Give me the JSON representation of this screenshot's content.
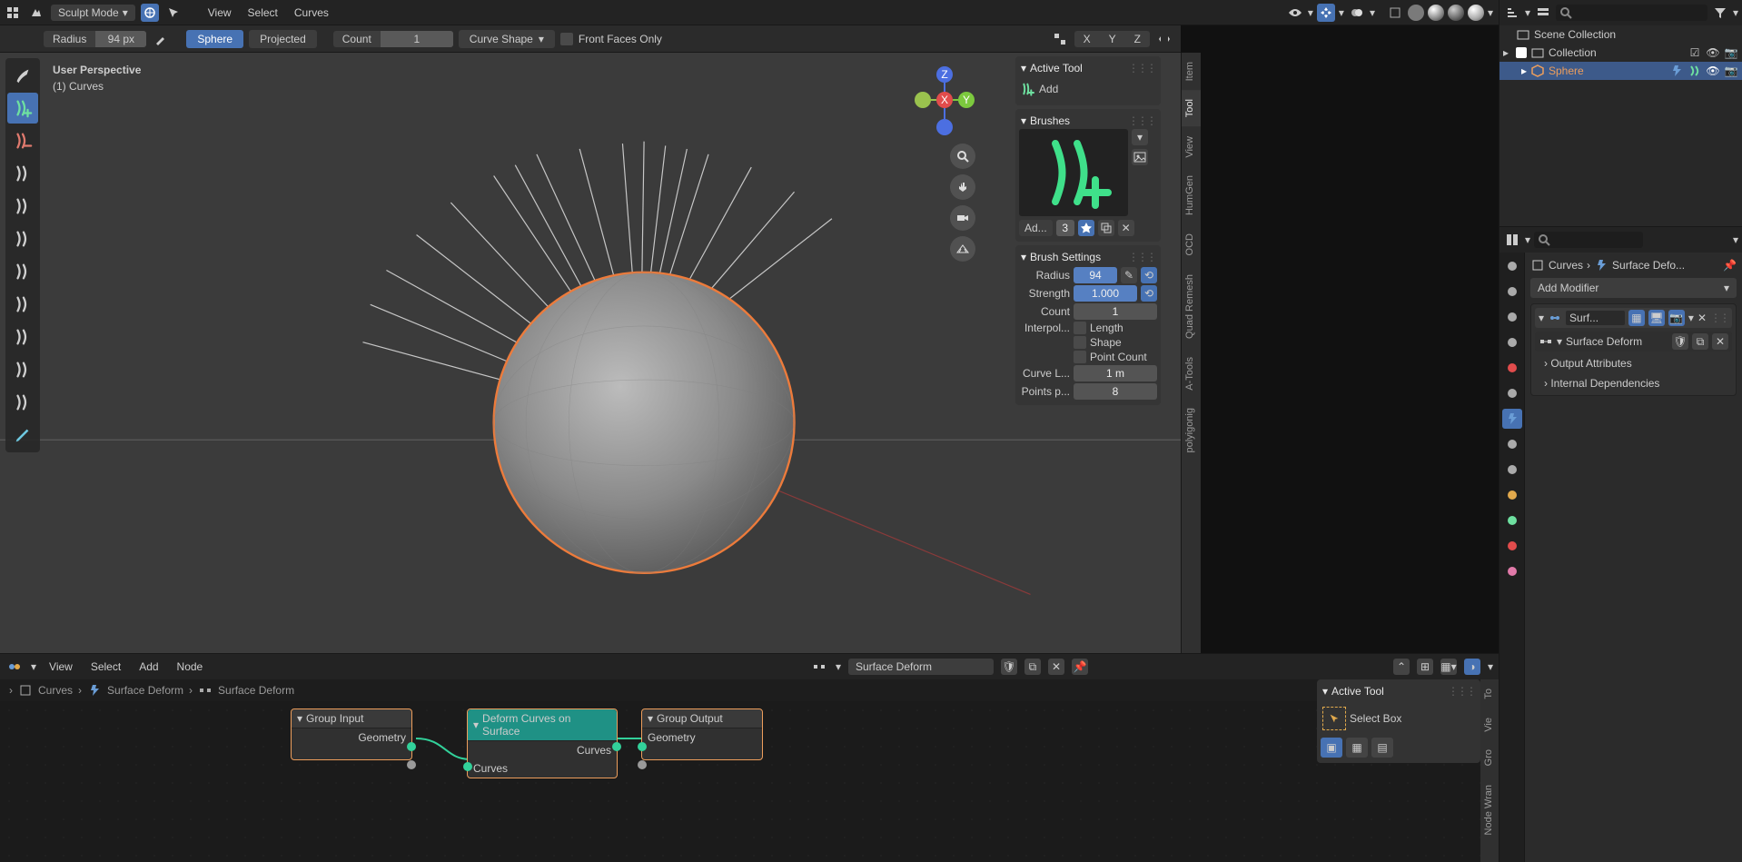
{
  "topbar": {
    "mode": "Sculpt Mode",
    "menus": [
      "View",
      "Select",
      "Curves"
    ]
  },
  "header_right": {
    "shading_balls": [
      "#7a7a7a",
      "#ffffff",
      "#9a9a9a",
      "#ffffff"
    ]
  },
  "toolbar": {
    "radius_label": "Radius",
    "radius_value": "94 px",
    "sphere_label": "Sphere",
    "projected_label": "Projected",
    "count_label": "Count",
    "count_value": "1",
    "curve_shape": "Curve Shape",
    "front_faces": "Front Faces Only",
    "xyz": [
      "X",
      "Y",
      "Z"
    ]
  },
  "tool_column": [
    {
      "name": "brush-icon",
      "active": false,
      "color": "#cfcfcf"
    },
    {
      "name": "add-curves-icon",
      "active": true,
      "color": "#6ee0a0"
    },
    {
      "name": "delete-curves-icon",
      "active": false,
      "color": "#e07a6e"
    },
    {
      "name": "density-icon",
      "active": false,
      "color": "#cfcfcf"
    },
    {
      "name": "comb-icon",
      "active": false,
      "color": "#cfcfcf"
    },
    {
      "name": "snake-hook-icon",
      "active": false,
      "color": "#cfcfcf"
    },
    {
      "name": "grow-shrink-icon",
      "active": false,
      "color": "#cfcfcf"
    },
    {
      "name": "pinch-icon",
      "active": false,
      "color": "#cfcfcf"
    },
    {
      "name": "smooth-icon",
      "active": false,
      "color": "#cfcfcf"
    },
    {
      "name": "puff-icon",
      "active": false,
      "color": "#cfcfcf"
    },
    {
      "name": "slide-icon",
      "active": false,
      "color": "#cfcfcf"
    },
    {
      "name": "annotate-icon",
      "active": false,
      "color": "#6ec8e0"
    }
  ],
  "viewport": {
    "label_line1": "User Perspective",
    "label_line2": "(1) Curves",
    "bg": "#3b3b3b",
    "sphere_color": "#8a8a8a",
    "outline_color": "#ed7b3b",
    "line_color": "#c7c7c7"
  },
  "gizmo": {
    "x": "#e14c4c",
    "y": "#7cc93e",
    "z": "#4c6fe1",
    "neutral": "#6a6a6a"
  },
  "vtabs": [
    "Item",
    "Tool",
    "View",
    "HumGen",
    "OCD",
    "Quad Remesh",
    "A-Tools",
    "polyigonig"
  ],
  "vtabs_active_index": 1,
  "npanel": {
    "active_tool_hdr": "Active Tool",
    "add_label": "Add",
    "brushes_hdr": "Brushes",
    "add_btn": "Ad...",
    "add_count": "3",
    "brush_settings_hdr": "Brush Settings",
    "radius_lbl": "Radius",
    "radius_val": "94",
    "strength_lbl": "Strength",
    "strength_val": "1.000",
    "count_lbl": "Count",
    "count_val": "1",
    "interp_lbl": "Interpol...",
    "interp_opts": [
      "Length",
      "Shape",
      "Point Count"
    ],
    "curve_len_lbl": "Curve L...",
    "curve_len_val": "1 m",
    "points_lbl": "Points p...",
    "points_val": "8"
  },
  "outliner": {
    "root": "Scene Collection",
    "collection": "Collection",
    "item": "Sphere",
    "item_color": "#ed9e5c"
  },
  "props": {
    "bc_curves": "Curves",
    "bc_mod": "Surface Defo...",
    "add_modifier": "Add Modifier",
    "mod_name": "Surf...",
    "geo_group": "Surface Deform",
    "section1": "Output Attributes",
    "section2": "Internal Dependencies",
    "tab_icons": [
      "render",
      "output",
      "view",
      "scene",
      "world",
      "object",
      "modifier",
      "particle",
      "physics",
      "constraint",
      "data",
      "material",
      "texture"
    ],
    "active_tab_index": 6,
    "tab_colors": {
      "world": "#e14c4c",
      "constraint": "#e1a94c",
      "data": "#6ee0a0",
      "material": "#e14c4c",
      "texture": "#e17aa9",
      "modifier": "#5b8dd6"
    }
  },
  "nodes": {
    "menus": [
      "View",
      "Select",
      "Add",
      "Node"
    ],
    "group_name": "Surface Deform",
    "bc": [
      "Curves",
      "Surface Deform",
      "Surface Deform"
    ],
    "active_tool": "Active Tool",
    "selectbox": "Select Box",
    "vtabs": [
      "To",
      "Vie",
      "Gro",
      "Node Wran"
    ],
    "node1": {
      "title": "Group Input",
      "out": "Geometry"
    },
    "node2": {
      "title": "Deform Curves on Surface",
      "out": "Curves",
      "in": "Curves"
    },
    "node3": {
      "title": "Group Output",
      "in": "Geometry"
    },
    "sock_geo": "#32d19a",
    "sock_gray": "#9a9a9a"
  }
}
